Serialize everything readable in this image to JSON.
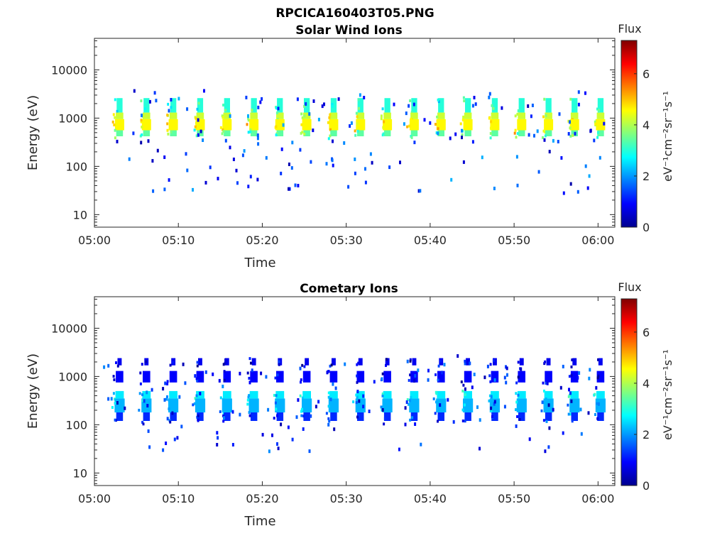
{
  "figure": {
    "title": "RPCICA160403T05.PNG"
  },
  "chart_data": [
    {
      "type": "heatmap",
      "title": "Solar Wind Ions",
      "xlabel": "Time",
      "ylabel": "Energy (eV)",
      "x_ticks": [
        "05:00",
        "05:10",
        "05:20",
        "05:30",
        "05:40",
        "05:50",
        "06:00"
      ],
      "x_range_minutes": [
        0,
        62
      ],
      "y_scale": "log",
      "y_ticks": [
        10,
        100,
        1000,
        10000
      ],
      "y_tick_labels": [
        "10",
        "100",
        "1000",
        "10000"
      ],
      "ylim": [
        5.5,
        45000
      ],
      "colorbar": {
        "title": "Flux",
        "label": "eV⁻¹cm⁻²sr⁻¹s⁻¹",
        "ticks": [
          0,
          2,
          4,
          6
        ],
        "range": [
          0,
          7.3
        ],
        "colormap": "jet"
      },
      "grid": false,
      "sweep_times_min": [
        3.0,
        6.2,
        9.4,
        12.6,
        15.8,
        19.0,
        22.1,
        25.3,
        28.5,
        31.7,
        34.9,
        38.1,
        41.3,
        44.5,
        47.7,
        50.9,
        54.1,
        57.2,
        60.3
      ],
      "bands": [
        {
          "emin": 1300,
          "emax": 2600,
          "flux": 3.0,
          "w": 0.7
        },
        {
          "emin": 950,
          "emax": 1300,
          "flux": 4.2,
          "w": 0.9
        },
        {
          "emin": 560,
          "emax": 950,
          "flux": 4.6,
          "w": 1.1
        },
        {
          "emin": 420,
          "emax": 560,
          "flux": 3.4,
          "w": 0.8
        }
      ],
      "noise_seed": 11,
      "noise_count": 150,
      "noise_erange": [
        30,
        4000
      ],
      "noise_flux": [
        0.3,
        2.2
      ]
    },
    {
      "type": "heatmap",
      "title": "Cometary Ions",
      "xlabel": "Time",
      "ylabel": "Energy (eV)",
      "x_ticks": [
        "05:00",
        "05:10",
        "05:20",
        "05:30",
        "05:40",
        "05:50",
        "06:00"
      ],
      "x_range_minutes": [
        0,
        62
      ],
      "y_scale": "log",
      "y_ticks": [
        10,
        100,
        1000,
        10000
      ],
      "y_tick_labels": [
        "10",
        "100",
        "1000",
        "10000"
      ],
      "ylim": [
        5.5,
        45000
      ],
      "colorbar": {
        "title": "Flux",
        "label": "eV⁻¹cm⁻²sr⁻¹s⁻¹",
        "ticks": [
          0,
          2,
          4,
          6
        ],
        "range": [
          0,
          7.3
        ],
        "colormap": "jet"
      },
      "grid": false,
      "sweep_times_min": [
        3.0,
        6.2,
        9.4,
        12.6,
        15.8,
        19.0,
        22.1,
        25.3,
        28.5,
        31.7,
        34.9,
        38.1,
        41.3,
        44.5,
        47.7,
        50.9,
        54.1,
        57.2,
        60.3
      ],
      "bands": [
        {
          "emin": 1700,
          "emax": 2400,
          "flux": 0.8,
          "w": 0.5
        },
        {
          "emin": 750,
          "emax": 1300,
          "flux": 0.9,
          "w": 0.9
        },
        {
          "emin": 350,
          "emax": 500,
          "flux": 2.6,
          "w": 1.0
        },
        {
          "emin": 180,
          "emax": 350,
          "flux": 2.2,
          "w": 1.2
        },
        {
          "emin": 120,
          "emax": 180,
          "flux": 1.2,
          "w": 0.8
        }
      ],
      "noise_seed": 23,
      "noise_count": 140,
      "noise_erange": [
        30,
        3000
      ],
      "noise_flux": [
        0.3,
        2.0
      ]
    }
  ]
}
